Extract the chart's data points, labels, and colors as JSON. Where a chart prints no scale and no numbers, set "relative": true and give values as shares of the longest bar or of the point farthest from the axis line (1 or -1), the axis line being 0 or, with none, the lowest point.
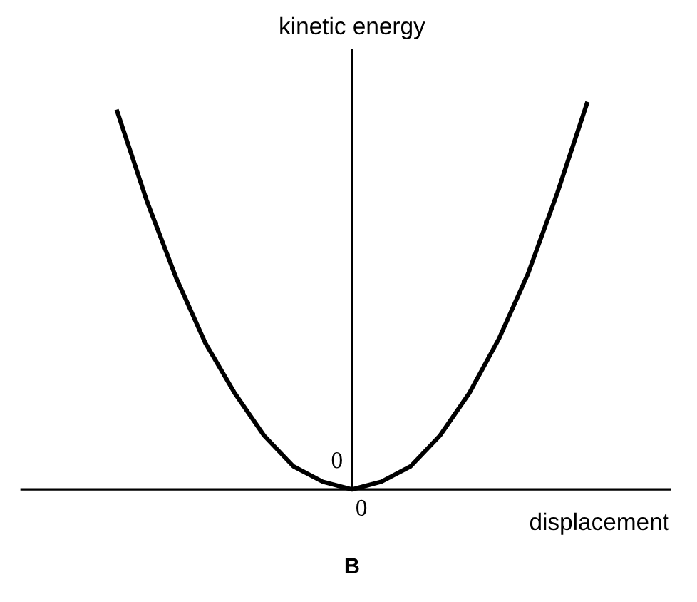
{
  "chart_data": {
    "type": "line",
    "relative": true,
    "xlabel": "displacement",
    "ylabel": "kinetic energy",
    "categories": [
      null,
      null,
      null,
      null,
      null,
      null,
      null,
      null,
      null,
      null,
      null,
      null,
      null,
      null,
      null,
      null,
      null
    ],
    "series": [
      {
        "color": "#000000",
        "values": [
          0.98,
          0.75,
          0.55,
          0.38,
          0.25,
          0.14,
          0.06,
          0.02,
          0,
          0.02,
          0.06,
          0.14,
          0.25,
          0.39,
          0.56,
          0.77,
          1
        ]
      }
    ],
    "annotations": [
      "0",
      "0",
      "B"
    ],
    "grid": false,
    "legend": false,
    "marker": "none",
    "line_style": "solid"
  }
}
